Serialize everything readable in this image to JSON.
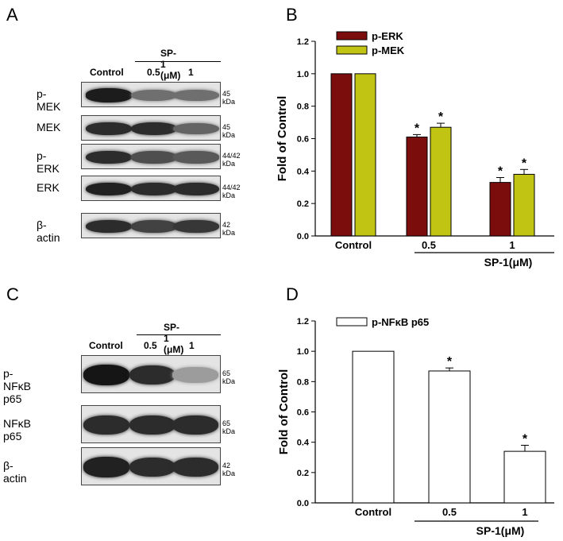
{
  "panels": {
    "A": "A",
    "B": "B",
    "C": "C",
    "D": "D"
  },
  "blotA": {
    "treatment": "SP-1 (μM)",
    "lanes": [
      "Control",
      "0.5",
      "1"
    ],
    "rows": [
      {
        "label": "p-MEK",
        "kda": "45 kDa",
        "bands": [
          0.92,
          0.55,
          0.55
        ]
      },
      {
        "label": "MEK",
        "kda": "45 kDa",
        "bands": [
          0.85,
          0.85,
          0.6
        ]
      },
      {
        "label": "p-ERK",
        "kda": "44/42 kDa",
        "bands": [
          0.85,
          0.7,
          0.65
        ]
      },
      {
        "label": "ERK",
        "kda": "44/42 kDa",
        "bands": [
          0.9,
          0.85,
          0.85
        ]
      },
      {
        "label": "β-actin",
        "kda": "42 kDa",
        "bands": [
          0.85,
          0.75,
          0.8
        ]
      }
    ]
  },
  "blotC": {
    "treatment": "SP-1 (μM)",
    "lanes": [
      "Control",
      "0.5",
      "1"
    ],
    "rows": [
      {
        "label": "p-NFκB p65",
        "kda": "65 kDa",
        "bands": [
          0.95,
          0.85,
          0.35
        ]
      },
      {
        "label": "NFκB p65",
        "kda": "65 kDa",
        "bands": [
          0.85,
          0.85,
          0.85
        ]
      },
      {
        "label": "β-actin",
        "kda": "42 kDa",
        "bands": [
          0.9,
          0.85,
          0.85
        ]
      }
    ]
  },
  "chart_data": [
    {
      "type": "bar",
      "ylabel": "Fold of Control",
      "categories": [
        "Control",
        "0.5",
        "1"
      ],
      "group_label": "SP-1(μM)",
      "ylim": [
        0,
        1.2
      ],
      "yticks": [
        "0.0",
        "0.2",
        "0.4",
        "0.6",
        "0.8",
        "1.0",
        "1.2"
      ],
      "legend_position": "top-left",
      "series": [
        {
          "name": "p-ERK",
          "color": "#7b0d0d",
          "values": [
            1.0,
            0.61,
            0.33
          ],
          "errors": [
            0,
            0.015,
            0.03
          ],
          "significance": [
            "",
            "*",
            "*"
          ]
        },
        {
          "name": "p-MEK",
          "color": "#c2c413",
          "values": [
            1.0,
            0.67,
            0.38
          ],
          "errors": [
            0,
            0.025,
            0.03
          ],
          "significance": [
            "",
            "*",
            "*"
          ]
        }
      ]
    },
    {
      "type": "bar",
      "ylabel": "Fold of Control",
      "categories": [
        "Control",
        "0.5",
        "1"
      ],
      "group_label": "SP-1(μM)",
      "ylim": [
        0,
        1.2
      ],
      "yticks": [
        "0.0",
        "0.2",
        "0.4",
        "0.6",
        "0.8",
        "1.0",
        "1.2"
      ],
      "legend_position": "top-left",
      "series": [
        {
          "name": "p-NFκB p65",
          "color": "#ffffff",
          "values": [
            1.0,
            0.87,
            0.34
          ],
          "errors": [
            0,
            0.02,
            0.04
          ],
          "significance": [
            "",
            "*",
            "*"
          ]
        }
      ]
    }
  ]
}
